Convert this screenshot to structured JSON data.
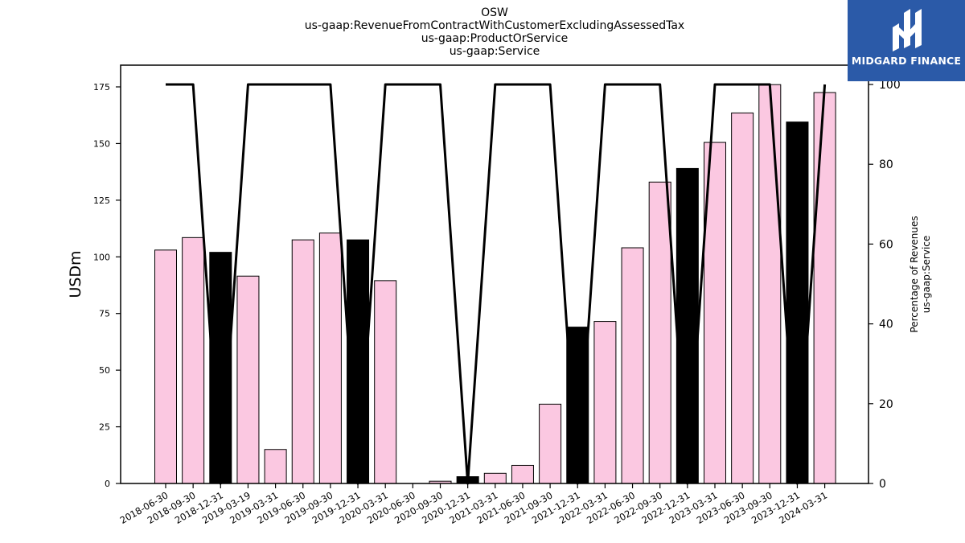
{
  "header": {
    "title_lines": [
      "OSW",
      "us-gaap:RevenueFromContractWithCustomerExcludingAssessedTax",
      "us-gaap:ProductOrService",
      "us-gaap:Service"
    ]
  },
  "logo": {
    "text": "MIDGARD FINANCE",
    "color": "#2b5aa8"
  },
  "chart_data": {
    "type": "bar",
    "categories": [
      "2018-06-30",
      "2018-09-30",
      "2018-12-31",
      "2019-03-19",
      "2019-03-31",
      "2019-06-30",
      "2019-09-30",
      "2019-12-31",
      "2020-03-31",
      "2020-06-30",
      "2020-09-30",
      "2020-12-31",
      "2021-03-31",
      "2021-06-30",
      "2021-09-30",
      "2021-12-31",
      "2022-03-31",
      "2022-06-30",
      "2022-09-30",
      "2022-12-31",
      "2023-03-31",
      "2023-06-30",
      "2023-09-30",
      "2023-12-31",
      "2024-03-31"
    ],
    "series": [
      {
        "name": "",
        "axis": "left",
        "values": [
          103,
          108.5,
          102,
          91.5,
          15,
          107.5,
          110.5,
          107.5,
          89.5,
          0,
          1,
          3,
          4.5,
          8,
          35,
          69,
          71.5,
          104,
          133,
          139,
          150.5,
          163.5,
          176,
          159.5,
          172.5
        ],
        "bar_colors": [
          "#fbc8e1",
          "#fbc8e1",
          "#000000",
          "#fbc8e1",
          "#fbc8e1",
          "#fbc8e1",
          "#fbc8e1",
          "#000000",
          "#fbc8e1",
          "#fbc8e1",
          "#fbc8e1",
          "#000000",
          "#fbc8e1",
          "#fbc8e1",
          "#fbc8e1",
          "#000000",
          "#fbc8e1",
          "#fbc8e1",
          "#fbc8e1",
          "#000000",
          "#fbc8e1",
          "#fbc8e1",
          "#fbc8e1",
          "#000000",
          "#fbc8e1"
        ]
      },
      {
        "name": "",
        "axis": "right",
        "type": "line",
        "values": [
          100,
          100,
          0,
          100,
          100,
          100,
          100,
          0,
          100,
          100,
          100,
          0,
          100,
          100,
          100,
          0,
          100,
          100,
          100,
          0,
          100,
          100,
          100,
          0,
          100
        ]
      }
    ],
    "ylabel_left": "USDm",
    "ylabel_right": [
      "Percentage of Revenues",
      "us-gaap:Service"
    ],
    "ylim_left": [
      0,
      185
    ],
    "ylim_right": [
      0,
      100
    ],
    "yticks_left": [
      "0",
      "25",
      "50",
      "75",
      "100",
      "125",
      "150",
      "175"
    ],
    "yticks_right": [
      "0",
      "20",
      "40",
      "60",
      "80",
      "100"
    ],
    "grid": false
  }
}
